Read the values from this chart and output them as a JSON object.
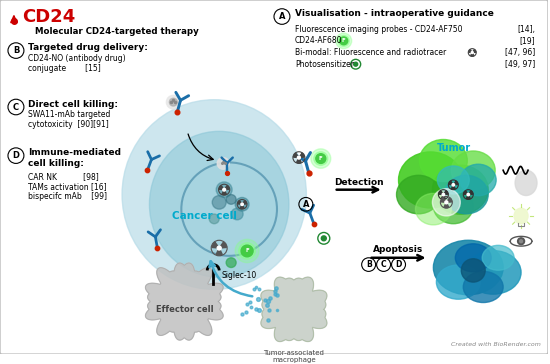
{
  "title": "CD24",
  "title_color": "#cc0000",
  "background_color": "#ffffff",
  "border_color": "#bbbbbb",
  "mol_therapy_label": "Molecular CD24-targeted therapy",
  "section_A_title": "Visualisation - intraoperative guidance",
  "section_B_title": "Targeted drug delivery:",
  "section_B_lines": [
    "CD24-NO (antibody drug)",
    "conjugate        [15]"
  ],
  "section_C_title": "Direct cell killing:",
  "section_C_lines": [
    "SWA11-mAb targeted",
    "cytotoxicity  [90][91]"
  ],
  "section_D_title": "Immune-mediated\ncell killing:",
  "section_D_lines": [
    "CAR NK           [98]",
    "TAMs activation [16]",
    "bispecifc mAb    [99]"
  ],
  "cancer_cell_label": "Cancer cell",
  "tumor_label": "Tumor",
  "effector_label": "Effector cell",
  "macrophage_label": "Tumor-associated\nmacrophage",
  "detection_label": "Detection",
  "apoptosis_label": "Apoptosis",
  "siglec_label": "Siglec-10",
  "biorender_label": "Created with BioRender.com",
  "cell_color": "#9ecfdc",
  "cell_inner_color": "#c8e8f0",
  "antibody_blue": "#1a6ea8",
  "label_cyan": "#00aacc",
  "tumor_green1": "#44bb22",
  "tumor_green2": "#66dd33",
  "tumor_teal1": "#22aaaa",
  "tumor_teal2": "#44cccc",
  "apoptosis_teal": "#2288aa",
  "effector_gray": "#c0c0c0",
  "macro_gray": "#c0c8c0"
}
